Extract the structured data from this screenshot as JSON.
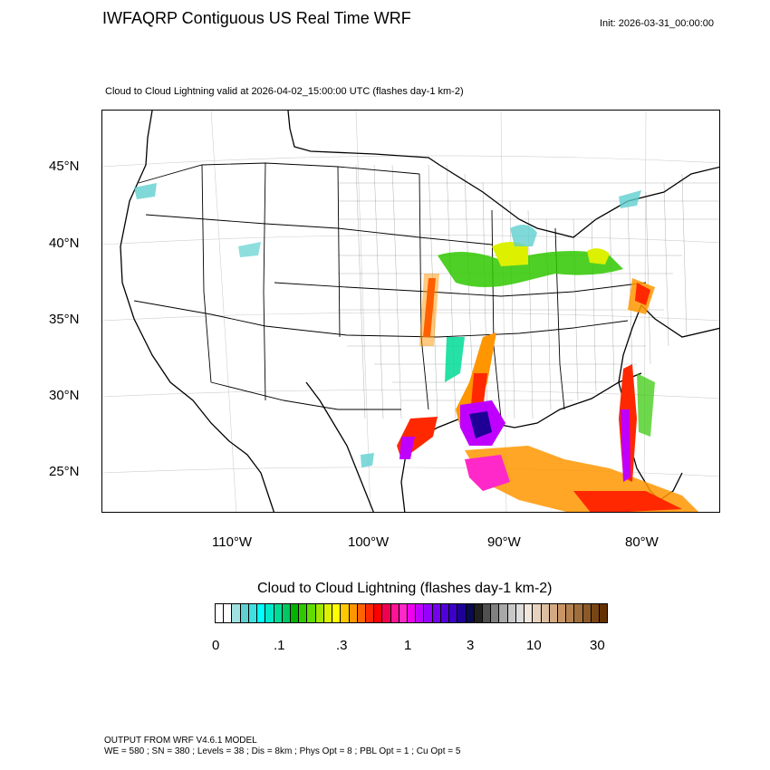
{
  "header": {
    "title": "IWFAQRP Contiguous US Real Time WRF",
    "init": "Init: 2026-03-31_00:00:00"
  },
  "plot": {
    "subtitle": "Cloud to Cloud Lightning valid at 2026-04-02_15:00:00 UTC   (flashes day-1 km-2)",
    "lat_labels": [
      "45°N",
      "40°N",
      "35°N",
      "30°N",
      "25°N"
    ],
    "lon_labels": [
      "110°W",
      "100°W",
      "90°W",
      "80°W"
    ]
  },
  "colorbar": {
    "title": "Cloud to Cloud Lightning  (flashes day-1 km-2)",
    "tick_labels": [
      "0",
      ".1",
      ".3",
      "1",
      "3",
      "10",
      "30"
    ],
    "colors": [
      "#ffffff",
      "#ffffff",
      "#a0e0e0",
      "#60d0d0",
      "#40e0e0",
      "#00ffff",
      "#00e8c8",
      "#00dc96",
      "#00c864",
      "#00b400",
      "#30c800",
      "#60dc00",
      "#a0e600",
      "#dcf000",
      "#ffff00",
      "#ffc800",
      "#ff9600",
      "#ff6400",
      "#ff2800",
      "#ff0000",
      "#f00050",
      "#ff1496",
      "#ff28c8",
      "#f000f0",
      "#c000ff",
      "#9600ff",
      "#7800f0",
      "#5000dc",
      "#3c00c8",
      "#1e0096",
      "#0a0a50",
      "#202020",
      "#505050",
      "#808080",
      "#a8a8a8",
      "#c8c8c8",
      "#dcdcdc",
      "#f0e6dc",
      "#e6d2be",
      "#dcbea0",
      "#d2aa82",
      "#c89664",
      "#b48250",
      "#a06e3c",
      "#8c5a28",
      "#784614",
      "#643200"
    ]
  },
  "footer": {
    "line1": "OUTPUT FROM WRF V4.6.1 MODEL",
    "line2": "WE = 580 ; SN = 380 ; Levels = 38 ; Dis = 8km ; Phys Opt = 8 ; PBL Opt = 1 ; Cu Opt = 5"
  }
}
